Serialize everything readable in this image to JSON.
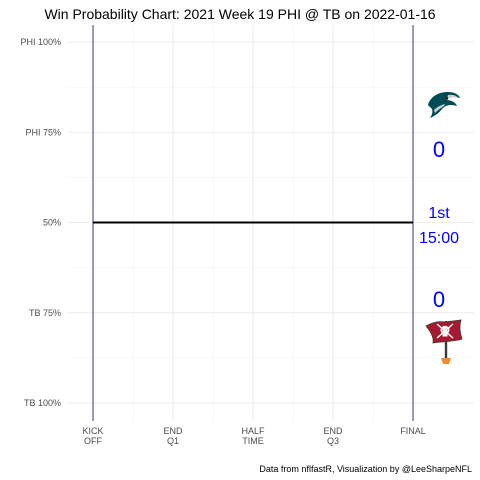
{
  "chart_data": {
    "type": "line",
    "title": "Win Probability Chart: 2021 Week 19 PHI @ TB on 2022-01-16",
    "x_ticks": [
      {
        "value": 0,
        "line1": "KICK",
        "line2": "OFF"
      },
      {
        "value": 15,
        "line1": "END",
        "line2": "Q1"
      },
      {
        "value": 30,
        "line1": "HALF",
        "line2": "TIME"
      },
      {
        "value": 45,
        "line1": "END",
        "line2": "Q3"
      },
      {
        "value": 60,
        "line1": "FINAL",
        "line2": ""
      }
    ],
    "y_ticks": [
      {
        "value": 0,
        "label": "TB 100%"
      },
      {
        "value": 0.25,
        "label": "TB 75%"
      },
      {
        "value": 0.5,
        "label": "50%"
      },
      {
        "value": 0.75,
        "label": "PHI 75%"
      },
      {
        "value": 1,
        "label": "PHI 100%"
      }
    ],
    "xlim": [
      0,
      60
    ],
    "ylim": [
      0,
      1
    ],
    "vlines": [
      0,
      60
    ],
    "series": [
      {
        "x": [
          0,
          60
        ],
        "y": [
          0.5,
          0.5
        ],
        "color": "#000000"
      }
    ],
    "annotations": {
      "home_score": "0",
      "away_score": "0",
      "quarter": "1st",
      "clock": "15:00"
    },
    "caption": "Data from nflfastR, Visualization by @LeeSharpeNFL",
    "grid": true,
    "colors": {
      "line": "#000000",
      "vline": "#1a237e",
      "annotation": "#0000ff",
      "phi_green": "#004c54",
      "tb_red": "#a71930",
      "tb_pewter": "#3e3a35"
    },
    "icons": {
      "away_logo": "eagle-head-logo-icon",
      "home_logo": "pirate-flag-logo-icon"
    }
  }
}
